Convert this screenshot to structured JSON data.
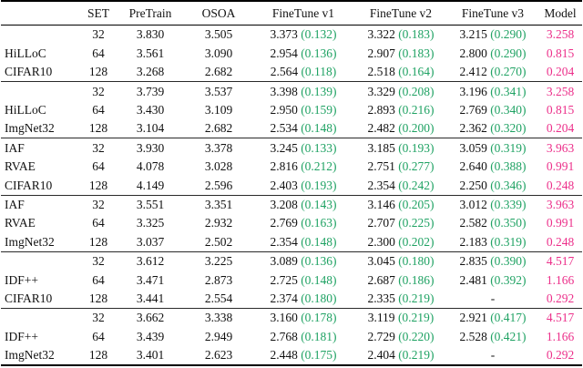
{
  "colors": {
    "delta_green": "#1fa263",
    "model_magenta": "#ec2f8a",
    "rule_black": "#000000"
  },
  "table": {
    "columns": [
      "",
      "SET",
      "PreTrain",
      "OSOA",
      "FineTune v1",
      "FineTune v2",
      "FineTune v3",
      "Model"
    ],
    "groups": [
      {
        "rows": [
          {
            "label": "",
            "set": "32",
            "pretrain": "3.830",
            "osoa": "3.505",
            "ft1": {
              "v": "3.373",
              "d": "(0.132)"
            },
            "ft2": {
              "v": "3.322",
              "d": "(0.183)"
            },
            "ft3": {
              "v": "3.215",
              "d": "(0.290)"
            },
            "model": "3.258"
          },
          {
            "label": "HiLLoC",
            "set": "64",
            "pretrain": "3.561",
            "osoa": "3.090",
            "ft1": {
              "v": "2.954",
              "d": "(0.136)"
            },
            "ft2": {
              "v": "2.907",
              "d": "(0.183)"
            },
            "ft3": {
              "v": "2.800",
              "d": "(0.290)"
            },
            "model": "0.815"
          },
          {
            "label": "CIFAR10",
            "set": "128",
            "pretrain": "3.268",
            "osoa": "2.682",
            "ft1": {
              "v": "2.564",
              "d": "(0.118)"
            },
            "ft2": {
              "v": "2.518",
              "d": "(0.164)"
            },
            "ft3": {
              "v": "2.412",
              "d": "(0.270)"
            },
            "model": "0.204"
          }
        ]
      },
      {
        "rows": [
          {
            "label": "",
            "set": "32",
            "pretrain": "3.739",
            "osoa": "3.537",
            "ft1": {
              "v": "3.398",
              "d": "(0.139)"
            },
            "ft2": {
              "v": "3.329",
              "d": "(0.208)"
            },
            "ft3": {
              "v": "3.196",
              "d": "(0.341)"
            },
            "model": "3.258"
          },
          {
            "label": "HiLLoC",
            "set": "64",
            "pretrain": "3.430",
            "osoa": "3.109",
            "ft1": {
              "v": "2.950",
              "d": "(0.159)"
            },
            "ft2": {
              "v": "2.893",
              "d": "(0.216)"
            },
            "ft3": {
              "v": "2.769",
              "d": "(0.340)"
            },
            "model": "0.815"
          },
          {
            "label": "ImgNet32",
            "set": "128",
            "pretrain": "3.104",
            "osoa": "2.682",
            "ft1": {
              "v": "2.534",
              "d": "(0.148)"
            },
            "ft2": {
              "v": "2.482",
              "d": "(0.200)"
            },
            "ft3": {
              "v": "2.362",
              "d": "(0.320)"
            },
            "model": "0.204"
          }
        ]
      },
      {
        "rows": [
          {
            "label": "IAF",
            "set": "32",
            "pretrain": "3.930",
            "osoa": "3.378",
            "ft1": {
              "v": "3.245",
              "d": "(0.133)"
            },
            "ft2": {
              "v": "3.185",
              "d": "(0.193)"
            },
            "ft3": {
              "v": "3.059",
              "d": "(0.319)"
            },
            "model": "3.963"
          },
          {
            "label": "RVAE",
            "set": "64",
            "pretrain": "4.078",
            "osoa": "3.028",
            "ft1": {
              "v": "2.816",
              "d": "(0.212)"
            },
            "ft2": {
              "v": "2.751",
              "d": "(0.277)"
            },
            "ft3": {
              "v": "2.640",
              "d": "(0.388)"
            },
            "model": "0.991"
          },
          {
            "label": "CIFAR10",
            "set": "128",
            "pretrain": "4.149",
            "osoa": "2.596",
            "ft1": {
              "v": "2.403",
              "d": "(0.193)"
            },
            "ft2": {
              "v": "2.354",
              "d": "(0.242)"
            },
            "ft3": {
              "v": "2.250",
              "d": "(0.346)"
            },
            "model": "0.248"
          }
        ]
      },
      {
        "rows": [
          {
            "label": "IAF",
            "set": "32",
            "pretrain": "3.551",
            "osoa": "3.351",
            "ft1": {
              "v": "3.208",
              "d": "(0.143)"
            },
            "ft2": {
              "v": "3.146",
              "d": "(0.205)"
            },
            "ft3": {
              "v": "3.012",
              "d": "(0.339)"
            },
            "model": "3.963"
          },
          {
            "label": "RVAE",
            "set": "64",
            "pretrain": "3.325",
            "osoa": "2.932",
            "ft1": {
              "v": "2.769",
              "d": "(0.163)"
            },
            "ft2": {
              "v": "2.707",
              "d": "(0.225)"
            },
            "ft3": {
              "v": "2.582",
              "d": "(0.350)"
            },
            "model": "0.991"
          },
          {
            "label": "ImgNet32",
            "set": "128",
            "pretrain": "3.037",
            "osoa": "2.502",
            "ft1": {
              "v": "2.354",
              "d": "(0.148)"
            },
            "ft2": {
              "v": "2.300",
              "d": "(0.202)"
            },
            "ft3": {
              "v": "2.183",
              "d": "(0.319)"
            },
            "model": "0.248"
          }
        ]
      },
      {
        "rows": [
          {
            "label": "",
            "set": "32",
            "pretrain": "3.612",
            "osoa": "3.225",
            "ft1": {
              "v": "3.089",
              "d": "(0.136)"
            },
            "ft2": {
              "v": "3.045",
              "d": "(0.180)"
            },
            "ft3": {
              "v": "2.835",
              "d": "(0.390)"
            },
            "model": "4.517"
          },
          {
            "label": "IDF++",
            "set": "64",
            "pretrain": "3.471",
            "osoa": "2.873",
            "ft1": {
              "v": "2.725",
              "d": "(0.148)"
            },
            "ft2": {
              "v": "2.687",
              "d": "(0.186)"
            },
            "ft3": {
              "v": "2.481",
              "d": "(0.392)"
            },
            "model": "1.166"
          },
          {
            "label": "CIFAR10",
            "set": "128",
            "pretrain": "3.441",
            "osoa": "2.554",
            "ft1": {
              "v": "2.374",
              "d": "(0.180)"
            },
            "ft2": {
              "v": "2.335",
              "d": "(0.219)"
            },
            "ft3": {
              "v": "-",
              "d": ""
            },
            "model": "0.292"
          }
        ]
      },
      {
        "rows": [
          {
            "label": "",
            "set": "32",
            "pretrain": "3.662",
            "osoa": "3.338",
            "ft1": {
              "v": "3.160",
              "d": "(0.178)"
            },
            "ft2": {
              "v": "3.119",
              "d": "(0.219)"
            },
            "ft3": {
              "v": "2.921",
              "d": "(0.417)"
            },
            "model": "4.517"
          },
          {
            "label": "IDF++",
            "set": "64",
            "pretrain": "3.439",
            "osoa": "2.949",
            "ft1": {
              "v": "2.768",
              "d": "(0.181)"
            },
            "ft2": {
              "v": "2.729",
              "d": "(0.220)"
            },
            "ft3": {
              "v": "2.528",
              "d": "(0.421)"
            },
            "model": "1.166"
          },
          {
            "label": "ImgNet32",
            "set": "128",
            "pretrain": "3.401",
            "osoa": "2.623",
            "ft1": {
              "v": "2.448",
              "d": "(0.175)"
            },
            "ft2": {
              "v": "2.404",
              "d": "(0.219)"
            },
            "ft3": {
              "v": "-",
              "d": ""
            },
            "model": "0.292"
          }
        ]
      }
    ]
  }
}
